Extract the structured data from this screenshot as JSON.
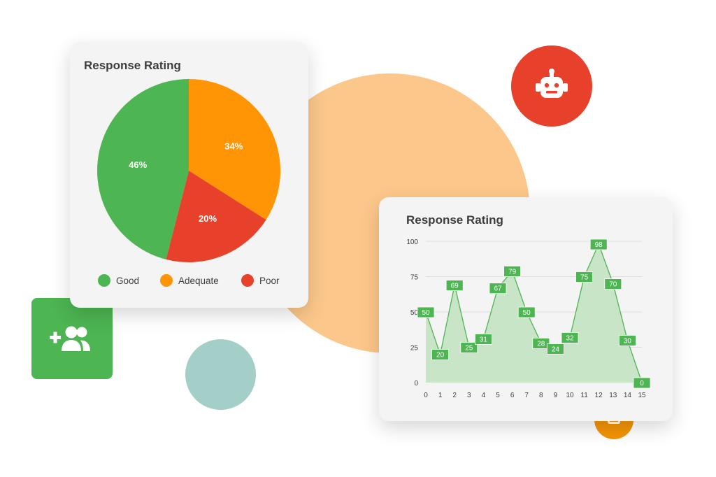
{
  "colors": {
    "good": "#4db552",
    "adequate": "#ff9405",
    "poor": "#e8412b",
    "line_stroke": "#4db552",
    "line_fill": "#c8e5c7",
    "label_bg": "#4db552",
    "grid": "#dedede"
  },
  "icons": {
    "bot_badge": "robot-icon",
    "user_tile": "add-user-icon",
    "small_badge": "robot-icon"
  },
  "pie_card": {
    "title": "Response Rating",
    "legend": [
      {
        "label": "Good",
        "color": "#4db552"
      },
      {
        "label": "Adequate",
        "color": "#ff9405"
      },
      {
        "label": "Poor",
        "color": "#e8412b"
      }
    ]
  },
  "line_card": {
    "title": "Response Rating"
  },
  "chart_data": [
    {
      "type": "pie",
      "title": "Response Rating",
      "slices": [
        {
          "label": "Good",
          "value": 46,
          "display": "46%",
          "color": "#4db552"
        },
        {
          "label": "Adequate",
          "value": 34,
          "display": "34%",
          "color": "#ff9405"
        },
        {
          "label": "Poor",
          "value": 20,
          "display": "20%",
          "color": "#e8412b"
        }
      ],
      "legend_position": "bottom"
    },
    {
      "type": "area",
      "title": "Response Rating",
      "x": [
        0,
        1,
        2,
        3,
        4,
        5,
        6,
        7,
        8,
        9,
        10,
        11,
        12,
        13,
        14,
        15
      ],
      "series": [
        {
          "values": [
            50,
            20,
            69,
            25,
            31,
            67,
            79,
            50,
            28,
            24,
            32,
            75,
            98,
            70,
            30,
            0
          ]
        }
      ],
      "ylim": [
        0,
        100
      ],
      "yticks": [
        0,
        25,
        50,
        75,
        100
      ],
      "grid": true,
      "data_labels": true
    }
  ]
}
